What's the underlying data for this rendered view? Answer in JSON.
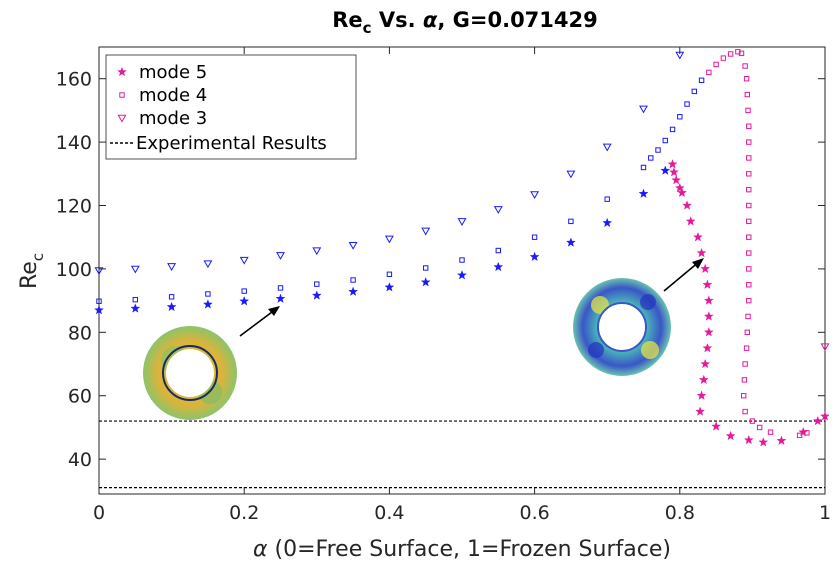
{
  "chart_data": {
    "type": "scatter",
    "title": {
      "main": "Re",
      "sub": "c",
      "rest": " Vs. ",
      "alpha": "α",
      "tail": ", G=0.071429"
    },
    "xlabel": {
      "alpha": "α",
      "rest": " (0=Free Surface, 1=Frozen Surface)"
    },
    "ylabel": {
      "main": "Re",
      "sub": "c"
    },
    "xlim": [
      0,
      1
    ],
    "ylim": [
      29,
      170
    ],
    "xticks": [
      0,
      0.2,
      0.4,
      0.6,
      0.8,
      1
    ],
    "xtick_labels": [
      "0",
      "0.2",
      "0.4",
      "0.6",
      "0.8",
      "1"
    ],
    "yticks": [
      40,
      60,
      80,
      100,
      120,
      140,
      160
    ],
    "ytick_labels": [
      "40",
      "60",
      "80",
      "100",
      "120",
      "140",
      "160"
    ],
    "grid": false,
    "legend_position": "top-left",
    "series": [
      {
        "name": "mode 5",
        "marker": "star",
        "colors": [
          "#1a1aff",
          "#e5199a"
        ],
        "points": [
          {
            "x": 0,
            "y": 87,
            "c": 0
          },
          {
            "x": 0.05,
            "y": 87.5,
            "c": 0
          },
          {
            "x": 0.1,
            "y": 88,
            "c": 0
          },
          {
            "x": 0.15,
            "y": 88.8,
            "c": 0
          },
          {
            "x": 0.2,
            "y": 89.8,
            "c": 0
          },
          {
            "x": 0.25,
            "y": 90.6,
            "c": 0
          },
          {
            "x": 0.3,
            "y": 91.6,
            "c": 0
          },
          {
            "x": 0.35,
            "y": 92.8,
            "c": 0
          },
          {
            "x": 0.4,
            "y": 94.2,
            "c": 0
          },
          {
            "x": 0.45,
            "y": 95.8,
            "c": 0
          },
          {
            "x": 0.5,
            "y": 98,
            "c": 0
          },
          {
            "x": 0.55,
            "y": 100.6,
            "c": 0
          },
          {
            "x": 0.6,
            "y": 103.8,
            "c": 0
          },
          {
            "x": 0.65,
            "y": 108.3,
            "c": 0
          },
          {
            "x": 0.7,
            "y": 114.5,
            "c": 0
          },
          {
            "x": 0.75,
            "y": 123.7,
            "c": 0
          },
          {
            "x": 0.78,
            "y": 131,
            "c": 0
          },
          {
            "x": 0.79,
            "y": 133,
            "c": 1
          },
          {
            "x": 0.792,
            "y": 130.5,
            "c": 1
          },
          {
            "x": 0.795,
            "y": 128,
            "c": 1
          },
          {
            "x": 0.8,
            "y": 125.5,
            "c": 1
          },
          {
            "x": 0.803,
            "y": 124,
            "c": 1
          },
          {
            "x": 0.81,
            "y": 120,
            "c": 1
          },
          {
            "x": 0.815,
            "y": 115,
            "c": 1
          },
          {
            "x": 0.825,
            "y": 110,
            "c": 1
          },
          {
            "x": 0.83,
            "y": 105,
            "c": 1
          },
          {
            "x": 0.835,
            "y": 100,
            "c": 1
          },
          {
            "x": 0.838,
            "y": 95,
            "c": 1
          },
          {
            "x": 0.84,
            "y": 90,
            "c": 1
          },
          {
            "x": 0.84,
            "y": 85,
            "c": 1
          },
          {
            "x": 0.84,
            "y": 80,
            "c": 1
          },
          {
            "x": 0.838,
            "y": 75,
            "c": 1
          },
          {
            "x": 0.835,
            "y": 70,
            "c": 1
          },
          {
            "x": 0.833,
            "y": 65,
            "c": 1
          },
          {
            "x": 0.83,
            "y": 60,
            "c": 1
          },
          {
            "x": 0.828,
            "y": 55,
            "c": 1
          },
          {
            "x": 0.85,
            "y": 50.3,
            "c": 1
          },
          {
            "x": 0.87,
            "y": 47.3,
            "c": 1
          },
          {
            "x": 0.895,
            "y": 46,
            "c": 1
          },
          {
            "x": 0.915,
            "y": 45.3,
            "c": 1
          },
          {
            "x": 0.94,
            "y": 45.8,
            "c": 1
          },
          {
            "x": 0.97,
            "y": 48.5,
            "c": 1
          },
          {
            "x": 0.99,
            "y": 52,
            "c": 1
          },
          {
            "x": 1,
            "y": 53.5,
            "c": 1
          }
        ]
      },
      {
        "name": "mode 4",
        "marker": "square",
        "colors": [
          "#1a1aff",
          "#e5199a"
        ],
        "points": [
          {
            "x": 0,
            "y": 89.8,
            "c": 0
          },
          {
            "x": 0.05,
            "y": 90.3,
            "c": 0
          },
          {
            "x": 0.1,
            "y": 91.2,
            "c": 0
          },
          {
            "x": 0.15,
            "y": 92.1,
            "c": 0
          },
          {
            "x": 0.2,
            "y": 93,
            "c": 0
          },
          {
            "x": 0.25,
            "y": 94,
            "c": 0
          },
          {
            "x": 0.3,
            "y": 95.2,
            "c": 0
          },
          {
            "x": 0.35,
            "y": 96.5,
            "c": 0
          },
          {
            "x": 0.4,
            "y": 98.3,
            "c": 0
          },
          {
            "x": 0.45,
            "y": 100.3,
            "c": 0
          },
          {
            "x": 0.5,
            "y": 102.8,
            "c": 0
          },
          {
            "x": 0.55,
            "y": 105.8,
            "c": 0
          },
          {
            "x": 0.6,
            "y": 110,
            "c": 0
          },
          {
            "x": 0.65,
            "y": 115,
            "c": 0
          },
          {
            "x": 0.7,
            "y": 122,
            "c": 0
          },
          {
            "x": 0.75,
            "y": 132,
            "c": 0
          },
          {
            "x": 0.76,
            "y": 135,
            "c": 0
          },
          {
            "x": 0.77,
            "y": 137.5,
            "c": 0
          },
          {
            "x": 0.78,
            "y": 140.5,
            "c": 0
          },
          {
            "x": 0.79,
            "y": 144,
            "c": 0
          },
          {
            "x": 0.8,
            "y": 148,
            "c": 0
          },
          {
            "x": 0.81,
            "y": 152,
            "c": 0
          },
          {
            "x": 0.82,
            "y": 156,
            "c": 0
          },
          {
            "x": 0.83,
            "y": 159.5,
            "c": 0
          },
          {
            "x": 0.84,
            "y": 162,
            "c": 1
          },
          {
            "x": 0.85,
            "y": 164.5,
            "c": 1
          },
          {
            "x": 0.86,
            "y": 166.5,
            "c": 1
          },
          {
            "x": 0.87,
            "y": 167.8,
            "c": 1
          },
          {
            "x": 0.88,
            "y": 168.5,
            "c": 1
          },
          {
            "x": 0.885,
            "y": 168,
            "c": 1
          },
          {
            "x": 0.89,
            "y": 164,
            "c": 1
          },
          {
            "x": 0.892,
            "y": 160,
            "c": 1
          },
          {
            "x": 0.893,
            "y": 155,
            "c": 1
          },
          {
            "x": 0.894,
            "y": 150,
            "c": 1
          },
          {
            "x": 0.895,
            "y": 145,
            "c": 1
          },
          {
            "x": 0.895,
            "y": 140,
            "c": 1
          },
          {
            "x": 0.895,
            "y": 135,
            "c": 1
          },
          {
            "x": 0.895,
            "y": 130,
            "c": 1
          },
          {
            "x": 0.895,
            "y": 125,
            "c": 1
          },
          {
            "x": 0.895,
            "y": 120,
            "c": 1
          },
          {
            "x": 0.895,
            "y": 115,
            "c": 1
          },
          {
            "x": 0.895,
            "y": 110,
            "c": 1
          },
          {
            "x": 0.895,
            "y": 105,
            "c": 1
          },
          {
            "x": 0.895,
            "y": 100,
            "c": 1
          },
          {
            "x": 0.895,
            "y": 95,
            "c": 1
          },
          {
            "x": 0.895,
            "y": 90,
            "c": 1
          },
          {
            "x": 0.894,
            "y": 85,
            "c": 1
          },
          {
            "x": 0.893,
            "y": 80,
            "c": 1
          },
          {
            "x": 0.892,
            "y": 75,
            "c": 1
          },
          {
            "x": 0.89,
            "y": 70,
            "c": 1
          },
          {
            "x": 0.889,
            "y": 65,
            "c": 1
          },
          {
            "x": 0.888,
            "y": 60,
            "c": 1
          },
          {
            "x": 0.89,
            "y": 55,
            "c": 1
          },
          {
            "x": 0.9,
            "y": 52,
            "c": 1
          },
          {
            "x": 0.91,
            "y": 50,
            "c": 1
          },
          {
            "x": 0.925,
            "y": 48.5,
            "c": 1
          },
          {
            "x": 0.965,
            "y": 47.5,
            "c": 1
          },
          {
            "x": 0.975,
            "y": 48.3,
            "c": 1
          }
        ]
      },
      {
        "name": "mode 3",
        "marker": "triangle-down",
        "colors": [
          "#1a1aff",
          "#e5199a"
        ],
        "points": [
          {
            "x": 0,
            "y": 99.5,
            "c": 0
          },
          {
            "x": 0.05,
            "y": 100,
            "c": 0
          },
          {
            "x": 0.1,
            "y": 100.8,
            "c": 0
          },
          {
            "x": 0.15,
            "y": 101.7,
            "c": 0
          },
          {
            "x": 0.2,
            "y": 102.8,
            "c": 0
          },
          {
            "x": 0.25,
            "y": 104.3,
            "c": 0
          },
          {
            "x": 0.3,
            "y": 105.8,
            "c": 0
          },
          {
            "x": 0.35,
            "y": 107.5,
            "c": 0
          },
          {
            "x": 0.4,
            "y": 109.5,
            "c": 0
          },
          {
            "x": 0.45,
            "y": 112,
            "c": 0
          },
          {
            "x": 0.5,
            "y": 115,
            "c": 0
          },
          {
            "x": 0.55,
            "y": 118.8,
            "c": 0
          },
          {
            "x": 0.6,
            "y": 123.5,
            "c": 0
          },
          {
            "x": 0.65,
            "y": 130,
            "c": 0
          },
          {
            "x": 0.7,
            "y": 138.5,
            "c": 0
          },
          {
            "x": 0.75,
            "y": 150.5,
            "c": 0
          },
          {
            "x": 0.8,
            "y": 167.5,
            "c": 0
          },
          {
            "x": 1,
            "y": 75.5,
            "c": 1
          }
        ]
      },
      {
        "name": "Experimental Results",
        "marker": "dashed-line",
        "color": "#000000",
        "hlines": [
          52,
          31
        ]
      }
    ]
  }
}
